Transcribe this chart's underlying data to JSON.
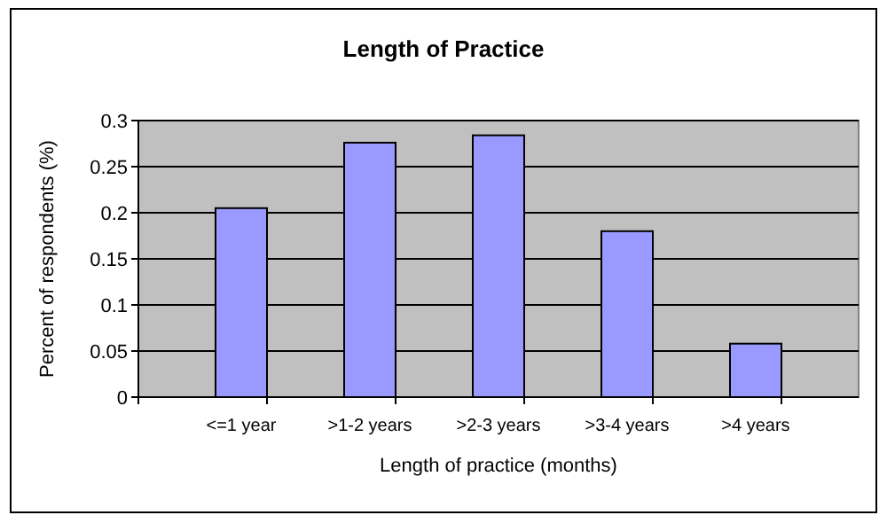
{
  "chart_data": {
    "type": "bar",
    "title": "Length of Practice",
    "xlabel": "Length of practice (months)",
    "ylabel": "Percent of respondents (%)",
    "categories": [
      "<=1 year",
      ">1-2 years",
      ">2-3 years",
      ">3-4 years",
      ">4 years"
    ],
    "values": [
      0.205,
      0.276,
      0.284,
      0.18,
      0.058
    ],
    "color": "#9999ff",
    "ylim": [
      0,
      0.3
    ],
    "yticks": [
      0,
      0.05,
      0.1,
      0.15,
      0.2,
      0.25,
      0.3
    ],
    "grid": "y"
  }
}
